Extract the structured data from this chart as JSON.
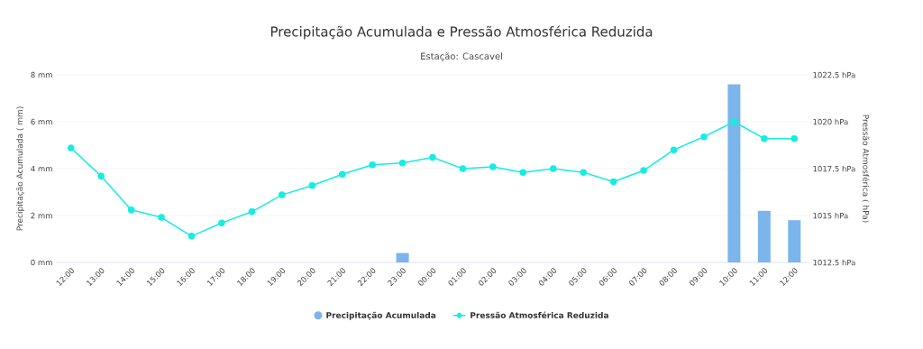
{
  "chart_data": {
    "type": "bar",
    "title": "Precipitação Acumulada e Pressão Atmosférica Reduzida",
    "subtitle": "Estação: Cascavel",
    "ylabel": "Precipitação Acumulada ( mm)",
    "y2label": "Pressão Atmosférica ( hPa)",
    "categories": [
      "12:00",
      "13:00",
      "14:00",
      "15:00",
      "16:00",
      "17:00",
      "18:00",
      "19:00",
      "20:00",
      "21:00",
      "22:00",
      "23:00",
      "00:00",
      "01:00",
      "02:00",
      "03:00",
      "04:00",
      "05:00",
      "06:00",
      "07:00",
      "08:00",
      "09:00",
      "10:00",
      "11:00",
      "12:00"
    ],
    "series": [
      {
        "name": "Precipitação Acumulada",
        "color": "#7cb5ec",
        "values": [
          0,
          0,
          0,
          0,
          0,
          0,
          0,
          0,
          0,
          0,
          0,
          0.4,
          0,
          0,
          0,
          0,
          0,
          0,
          0,
          0,
          0,
          0,
          7.6,
          2.2,
          1.8
        ]
      },
      {
        "name": "Pressão Atmosférica Reduzida",
        "type": "line",
        "axis": "y2",
        "color": "#16ede2",
        "marker": "circle",
        "values": [
          1018.6,
          1017.1,
          1015.3,
          1014.9,
          1013.9,
          1014.6,
          1015.2,
          1016.1,
          1016.6,
          1017.2,
          1017.7,
          1017.8,
          1018.1,
          1017.5,
          1017.6,
          1017.3,
          1017.5,
          1017.3,
          1016.8,
          1017.4,
          1018.5,
          1019.2,
          1020.0,
          1019.1,
          1019.1
        ]
      }
    ],
    "ylim": [
      0,
      8
    ],
    "yticks": [
      {
        "value": 0,
        "label": "0 mm"
      },
      {
        "value": 2,
        "label": "2 mm"
      },
      {
        "value": 4,
        "label": "4 mm"
      },
      {
        "value": 6,
        "label": "6 mm"
      },
      {
        "value": 8,
        "label": "8 mm"
      }
    ],
    "y2lim": [
      1012.5,
      1022.5
    ],
    "y2ticks": [
      {
        "value": 1012.5,
        "label": "1012.5 hPa"
      },
      {
        "value": 1015,
        "label": "1015 hPa"
      },
      {
        "value": 1017.5,
        "label": "1017.5 hPa"
      },
      {
        "value": 1020,
        "label": "1020 hPa"
      },
      {
        "value": 1022.5,
        "label": "1022.5 hPa"
      }
    ],
    "grid": "y",
    "legend": "bottom"
  }
}
